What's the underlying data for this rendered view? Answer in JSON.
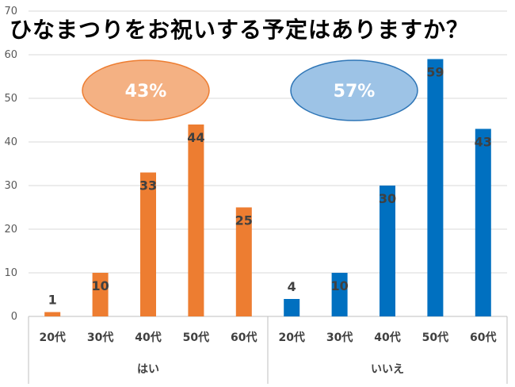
{
  "title": "ひなまつりをお祝いする予定はありますか？",
  "colors": {
    "orange": "#ED7D31",
    "blue": "#0070C0",
    "orange_ellipse": "#F4B183",
    "orange_ellipse_stroke": "#ED7D31",
    "blue_ellipse": "#9DC3E6",
    "blue_ellipse_stroke": "#2E75B6",
    "grid": "#D9D9D9"
  },
  "chart_data": {
    "type": "bar",
    "title": "ひなまつりをお祝いする予定はありますか？",
    "ylim": [
      0,
      70
    ],
    "yticks": [
      0,
      10,
      20,
      30,
      40,
      50,
      60,
      70
    ],
    "grid": true,
    "groups": [
      {
        "name": "はい",
        "percent_label": "43%",
        "color": "#ED7D31",
        "categories": [
          "20代",
          "30代",
          "40代",
          "50代",
          "60代"
        ],
        "values": [
          1,
          10,
          33,
          44,
          25
        ]
      },
      {
        "name": "いいえ",
        "percent_label": "57%",
        "color": "#0070C0",
        "categories": [
          "20代",
          "30代",
          "40代",
          "50代",
          "60代"
        ],
        "values": [
          4,
          10,
          30,
          59,
          43
        ]
      }
    ]
  }
}
